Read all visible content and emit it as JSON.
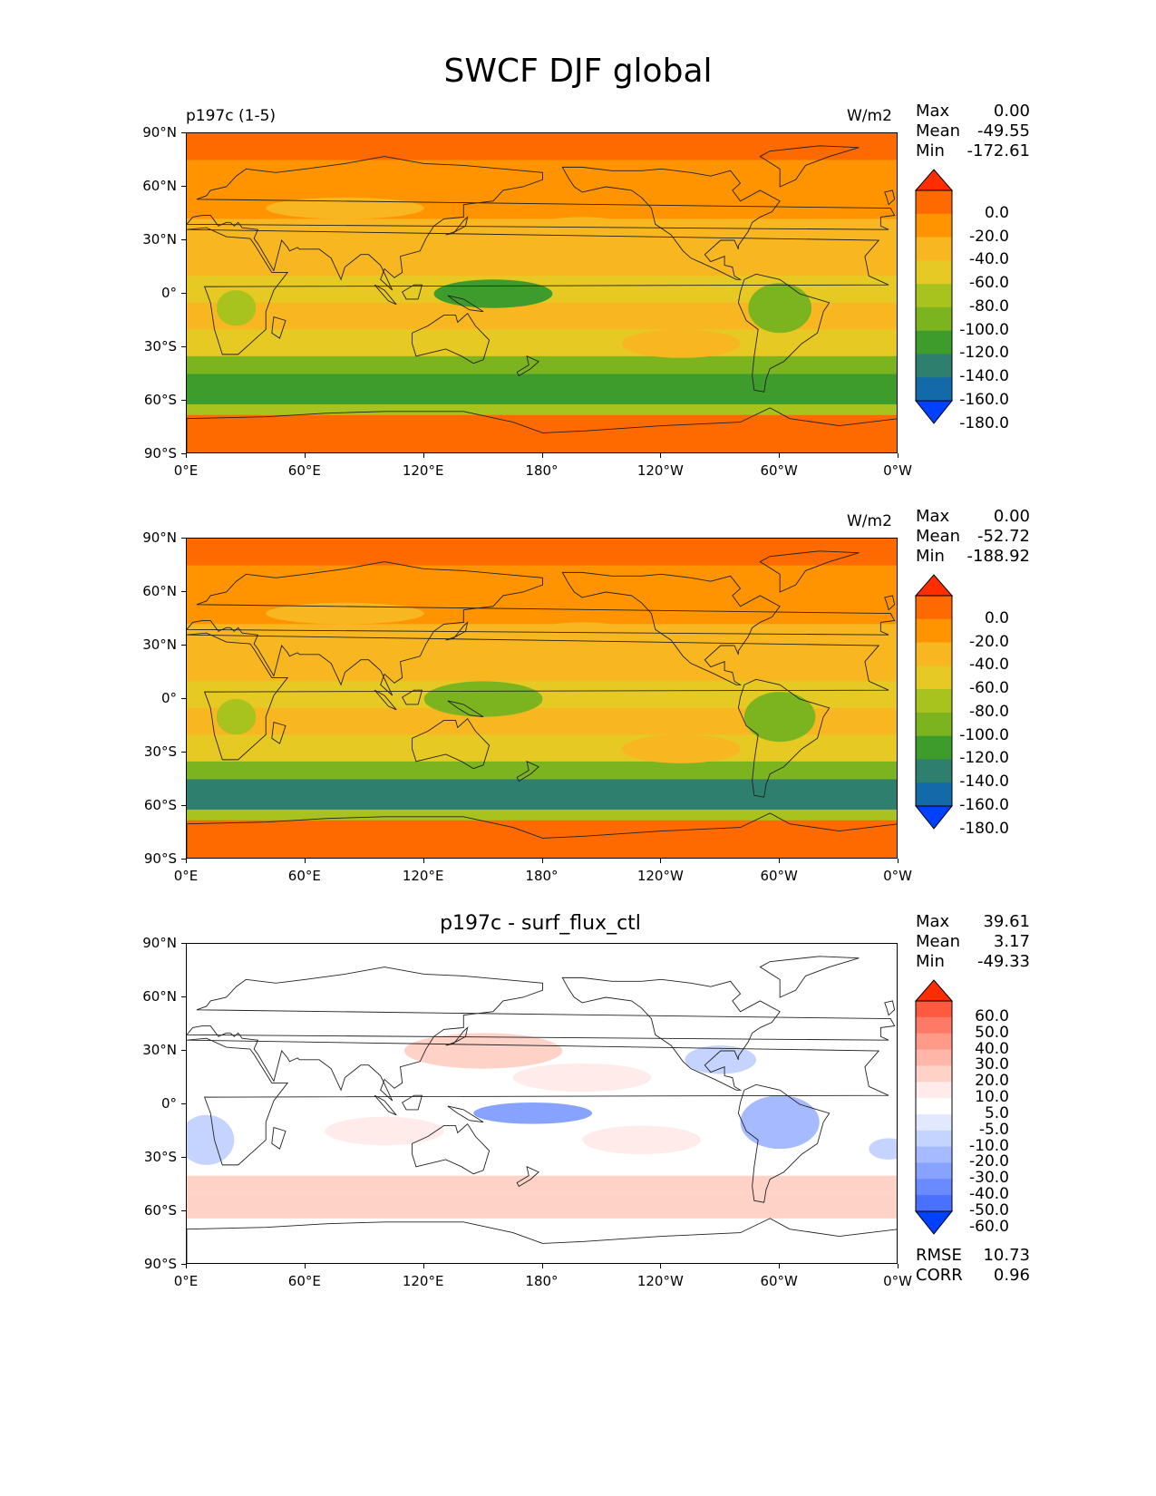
{
  "figure": {
    "title": "SWCF DJF global"
  },
  "panels": [
    {
      "left_title": "p197c (1-5)",
      "center_title": "",
      "units": "W/m2",
      "stats": [
        {
          "label": "Max",
          "value": "0.00"
        },
        {
          "label": "Mean",
          "value": "-49.55"
        },
        {
          "label": "Min",
          "value": "-172.61"
        }
      ],
      "extra_stats": []
    },
    {
      "left_title": "",
      "center_title": "",
      "units": "W/m2",
      "stats": [
        {
          "label": "Max",
          "value": "0.00"
        },
        {
          "label": "Mean",
          "value": "-52.72"
        },
        {
          "label": "Min",
          "value": "-188.92"
        }
      ],
      "extra_stats": []
    },
    {
      "left_title": "",
      "center_title": "p197c - surf_flux_ctl",
      "units": "",
      "stats": [
        {
          "label": "Max",
          "value": "39.61"
        },
        {
          "label": "Mean",
          "value": "3.17"
        },
        {
          "label": "Min",
          "value": "-49.33"
        }
      ],
      "extra_stats": [
        {
          "label": "RMSE",
          "value": "10.73"
        },
        {
          "label": "CORR",
          "value": "0.96"
        }
      ]
    }
  ],
  "axes": {
    "lon_ticks": [
      "0°E",
      "60°E",
      "120°E",
      "180°",
      "120°W",
      "60°W",
      "0°W"
    ],
    "lat_ticks": [
      "90°N",
      "60°N",
      "30°N",
      "0°",
      "30°S",
      "60°S",
      "90°S"
    ]
  },
  "colorbars": {
    "fields": {
      "labels": [
        "0.0",
        "-20.0",
        "-40.0",
        "-60.0",
        "-80.0",
        "-100.0",
        "-120.0",
        "-140.0",
        "-160.0",
        "-180.0"
      ],
      "colors": [
        "#ff2d00",
        "#ff6a00",
        "#ff9400",
        "#f8b721",
        "#e6c922",
        "#a8c21e",
        "#7bb41f",
        "#3e9c2d",
        "#2e7f6e",
        "#146aa8",
        "#0040ff"
      ]
    },
    "diff": {
      "labels": [
        "60.0",
        "50.0",
        "40.0",
        "30.0",
        "20.0",
        "10.0",
        "5.0",
        "-5.0",
        "-10.0",
        "-20.0",
        "-30.0",
        "-40.0",
        "-50.0",
        "-60.0"
      ],
      "colors": [
        "#ff2d00",
        "#ff5a40",
        "#ff7a66",
        "#ff9988",
        "#ffb6a8",
        "#ffd2c8",
        "#ffecea",
        "#ffffff",
        "#e2e9ff",
        "#c5d3ff",
        "#a6bbff",
        "#87a3ff",
        "#6a8aff",
        "#4a70ff",
        "#0040ff"
      ]
    }
  },
  "chart_data": [
    {
      "type": "heatmap",
      "title": "SWCF DJF global",
      "subtitle": "p197c (1-5)",
      "units": "W/m2",
      "x": [
        "0°E",
        "60°E",
        "120°E",
        "180°",
        "120°W",
        "60°W",
        "0°W"
      ],
      "y": [
        "90°N",
        "60°N",
        "30°N",
        "0°",
        "30°S",
        "60°S",
        "90°S"
      ],
      "levels": [
        0.0,
        -20.0,
        -40.0,
        -60.0,
        -80.0,
        -100.0,
        -120.0,
        -140.0,
        -160.0,
        -180.0
      ],
      "stats": {
        "max": 0.0,
        "mean": -49.55,
        "min": -172.61
      }
    },
    {
      "type": "heatmap",
      "units": "W/m2",
      "x": [
        "0°E",
        "60°E",
        "120°E",
        "180°",
        "120°W",
        "60°W",
        "0°W"
      ],
      "y": [
        "90°N",
        "60°N",
        "30°N",
        "0°",
        "30°S",
        "60°S",
        "90°S"
      ],
      "levels": [
        0.0,
        -20.0,
        -40.0,
        -60.0,
        -80.0,
        -100.0,
        -120.0,
        -140.0,
        -160.0,
        -180.0
      ],
      "stats": {
        "max": 0.0,
        "mean": -52.72,
        "min": -188.92
      }
    },
    {
      "type": "heatmap",
      "title": "p197c - surf_flux_ctl",
      "x": [
        "0°E",
        "60°E",
        "120°E",
        "180°",
        "120°W",
        "60°W",
        "0°W"
      ],
      "y": [
        "90°N",
        "60°N",
        "30°N",
        "0°",
        "30°S",
        "60°S",
        "90°S"
      ],
      "levels": [
        60.0,
        50.0,
        40.0,
        30.0,
        20.0,
        10.0,
        5.0,
        -5.0,
        -10.0,
        -20.0,
        -30.0,
        -40.0,
        -50.0,
        -60.0
      ],
      "stats": {
        "max": 39.61,
        "mean": 3.17,
        "min": -49.33,
        "rmse": 10.73,
        "corr": 0.96
      }
    }
  ]
}
